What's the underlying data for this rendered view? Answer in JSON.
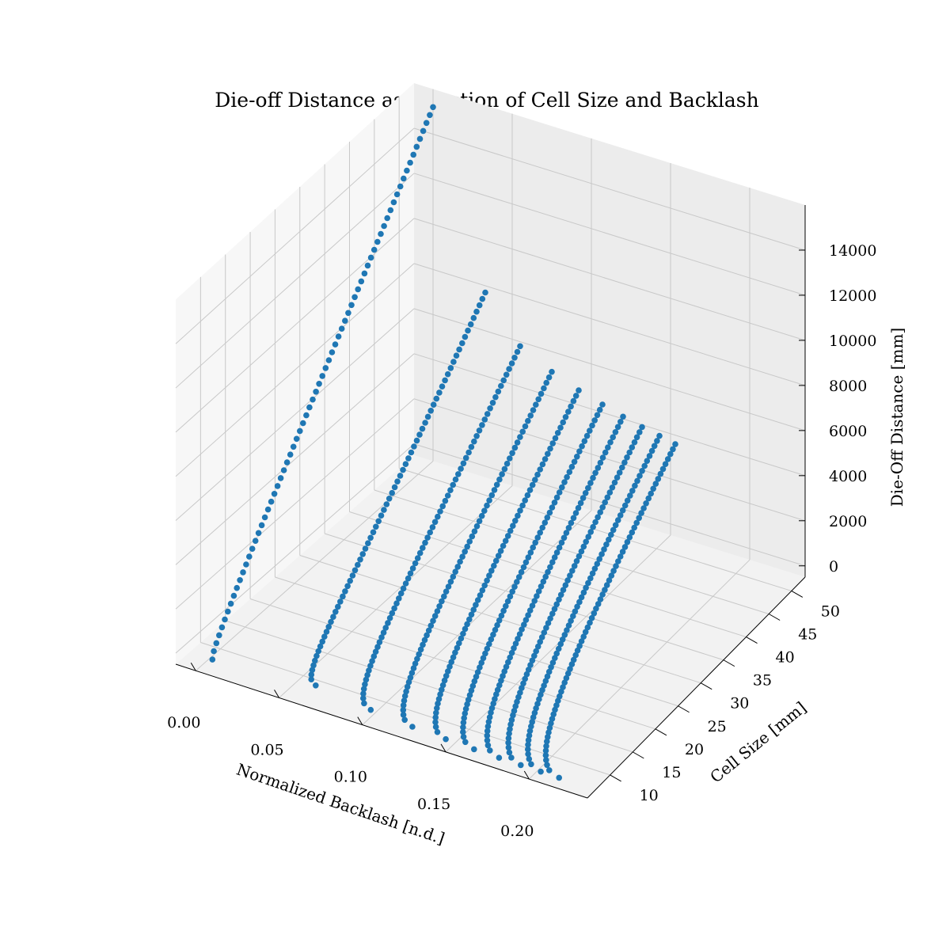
{
  "chart_data": {
    "type": "scatter",
    "projection": "3d",
    "title": "Die-off Distance as Function of Cell Size and Backlash",
    "xlabel": "Normalized Backlash [n.d.]",
    "ylabel": "Cell Size [mm]",
    "zlabel": "Die-Off Distance [mm]",
    "xlim": [
      -0.012,
      0.235
    ],
    "ylim": [
      5,
      53
    ],
    "zlim": [
      -500,
      16000
    ],
    "xticks": [
      "0.00",
      "0.05",
      "0.10",
      "0.15",
      "0.20"
    ],
    "xtick_values": [
      0.0,
      0.05,
      0.1,
      0.15,
      0.2
    ],
    "yticks": [
      "10",
      "15",
      "20",
      "25",
      "30",
      "35",
      "40",
      "45",
      "50"
    ],
    "ytick_values": [
      10,
      15,
      20,
      25,
      30,
      35,
      40,
      45,
      50
    ],
    "zticks": [
      "0",
      "2000",
      "4000",
      "6000",
      "8000",
      "10000",
      "12000",
      "14000"
    ],
    "ztick_values": [
      0,
      2000,
      4000,
      6000,
      8000,
      10000,
      12000,
      14000
    ],
    "grid": true,
    "marker_color": "#1f77b4",
    "series": [
      {
        "backlash_start": 0.0,
        "backlash_end": 0.01,
        "dieoff_at_5mm": 250,
        "dieoff_at_50mm": 15200
      },
      {
        "backlash_start": 0.033,
        "backlash_end": 0.072,
        "dieoff_at_5mm": 600,
        "dieoff_at_50mm": 7700
      },
      {
        "backlash_start": 0.055,
        "backlash_end": 0.105,
        "dieoff_at_5mm": 300,
        "dieoff_at_50mm": 5800
      },
      {
        "backlash_start": 0.075,
        "backlash_end": 0.13,
        "dieoff_at_5mm": 150,
        "dieoff_at_50mm": 5100
      },
      {
        "backlash_start": 0.092,
        "backlash_end": 0.15,
        "dieoff_at_5mm": 80,
        "dieoff_at_50mm": 4650
      },
      {
        "backlash_start": 0.107,
        "backlash_end": 0.167,
        "dieoff_at_5mm": 40,
        "dieoff_at_50mm": 4350
      },
      {
        "backlash_start": 0.12,
        "backlash_end": 0.182,
        "dieoff_at_5mm": 20,
        "dieoff_at_50mm": 4100
      },
      {
        "backlash_start": 0.132,
        "backlash_end": 0.195,
        "dieoff_at_5mm": 10,
        "dieoff_at_50mm": 3900
      },
      {
        "backlash_start": 0.143,
        "backlash_end": 0.207,
        "dieoff_at_5mm": 5,
        "dieoff_at_50mm": 3750
      },
      {
        "backlash_start": 0.153,
        "backlash_end": 0.218,
        "dieoff_at_5mm": 0,
        "dieoff_at_50mm": 3600
      }
    ]
  }
}
